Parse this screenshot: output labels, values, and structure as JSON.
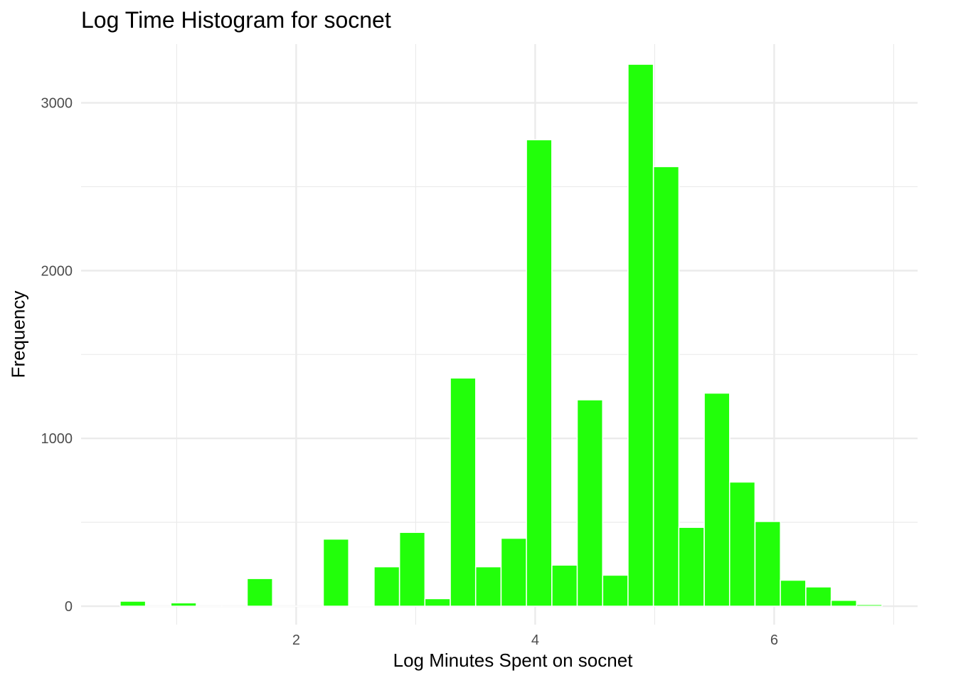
{
  "chart_data": {
    "type": "bar",
    "title": "Log Time Histogram for socnet",
    "xlabel": "Log Minutes Spent on socnet",
    "ylabel": "Frequency",
    "bar_color": "#22ff0a",
    "grid_color": "#ebebeb",
    "grid": true,
    "xlim": [
      0.2,
      7.2
    ],
    "ylim": [
      -110,
      3350
    ],
    "x_ticks": [
      2,
      4,
      6
    ],
    "y_ticks": [
      0,
      1000,
      2000,
      3000
    ],
    "bin_width": 0.2125,
    "bin_centers": [
      0.633,
      0.846,
      1.058,
      1.271,
      1.483,
      1.696,
      1.908,
      2.121,
      2.333,
      2.546,
      2.758,
      2.971,
      3.183,
      3.396,
      3.608,
      3.821,
      4.033,
      4.246,
      4.458,
      4.671,
      4.883,
      5.096,
      5.308,
      5.521,
      5.733,
      5.946,
      6.158,
      6.371,
      6.583,
      6.796
    ],
    "values": [
      30,
      0,
      20,
      0,
      0,
      165,
      0,
      0,
      400,
      5,
      235,
      440,
      45,
      1360,
      235,
      405,
      2780,
      245,
      1230,
      185,
      3230,
      2620,
      470,
      1270,
      740,
      505,
      155,
      115,
      35,
      10
    ]
  }
}
